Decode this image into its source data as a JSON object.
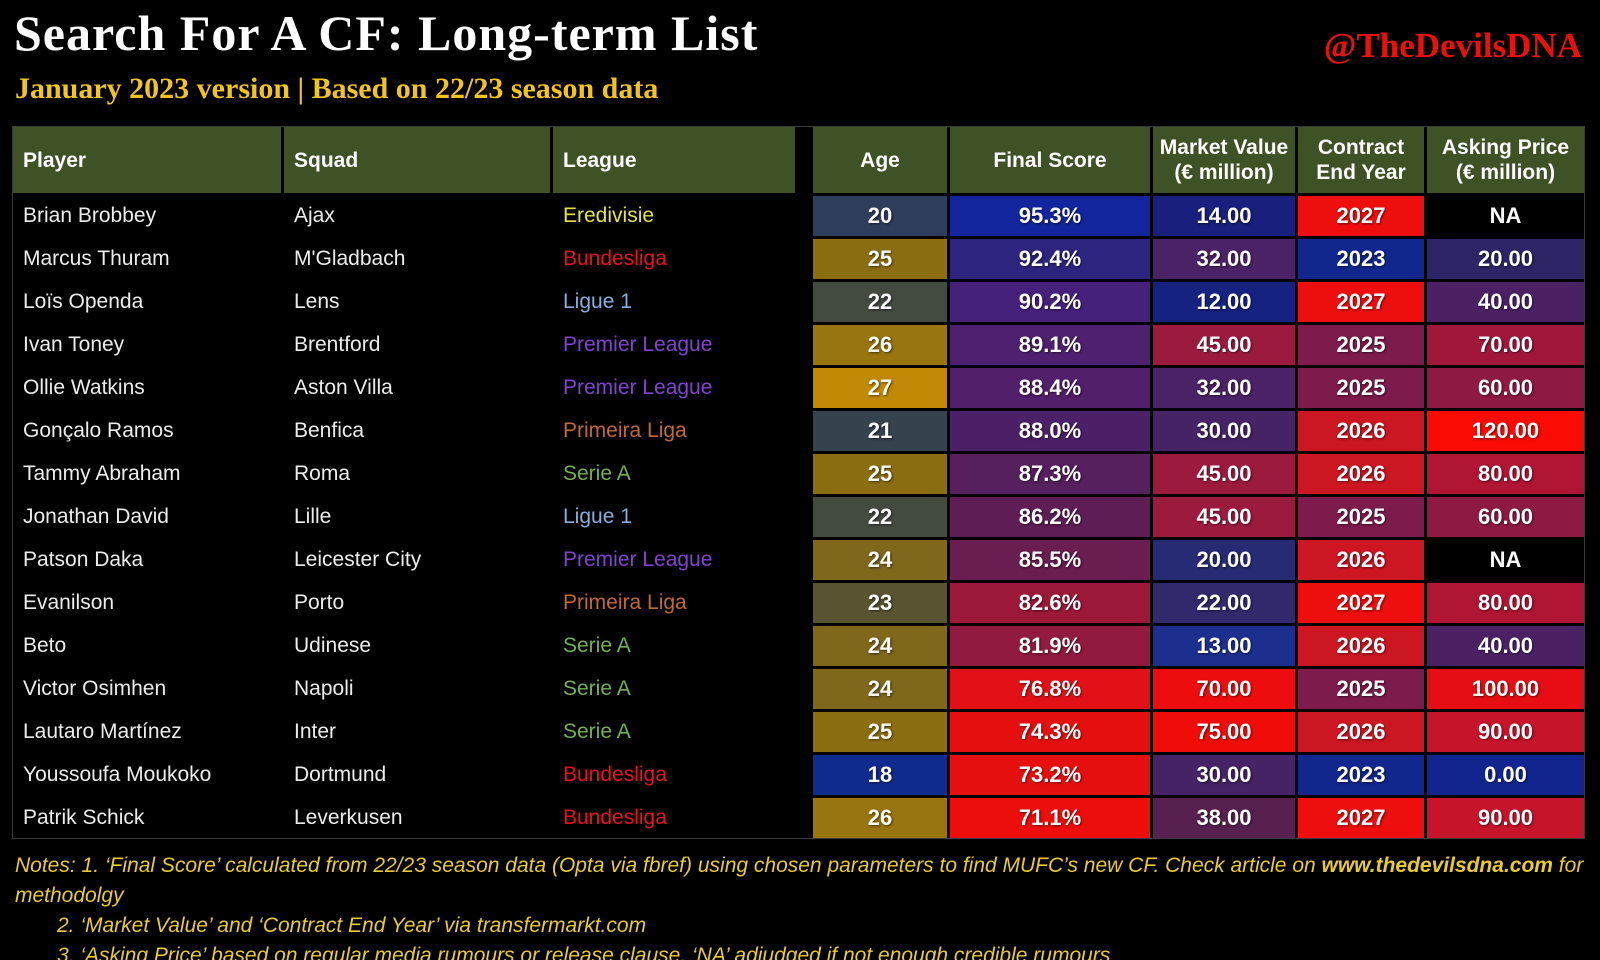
{
  "page": {
    "title": "Search For A CF: Long-term List",
    "subtitle": "January 2023 version | Based on 22/23 season data",
    "handle": "@TheDevilsDNA",
    "colors": {
      "background": "#000000",
      "title_text": "#ffffff",
      "subtitle_text": "#f2c51d",
      "handle_text": "#ea100c",
      "header_bg": "#3e5226",
      "notes_text": "#e9cb2e"
    }
  },
  "chart_data": {
    "type": "table",
    "title": "Search For A CF: Long-term List",
    "columns": [
      {
        "label": "Player",
        "sub": "",
        "align": "left"
      },
      {
        "label": "Squad",
        "sub": "",
        "align": "left"
      },
      {
        "label": "League",
        "sub": "",
        "align": "left"
      },
      {
        "label": "Age",
        "sub": "",
        "align": "center"
      },
      {
        "label": "Final Score",
        "sub": "",
        "align": "center"
      },
      {
        "label": "Market Value",
        "sub": "(€ million)",
        "align": "center"
      },
      {
        "label": "Contract",
        "sub": "End Year",
        "align": "center"
      },
      {
        "label": "Asking Price",
        "sub": "(€ million)",
        "align": "center"
      }
    ],
    "league_colors": {
      "Eredivisie": "#e6e33c",
      "Bundesliga": "#e8111d",
      "Ligue 1": "#85aede",
      "Premier League": "#8043cf",
      "Primeira Liga": "#c06a32",
      "Serie A": "#74b054"
    },
    "rows": [
      {
        "player": "Brian Brobbey",
        "squad": "Ajax",
        "league": "Eredivisie",
        "age": "20",
        "final_score": "95.3%",
        "market_value": "14.00",
        "contract_end_year": "2027",
        "asking_price": "NA",
        "cell_colors": {
          "age": "#2f3d5c",
          "final_score": "#12259c",
          "market_value": "#181f7c",
          "contract_end_year": "#ee0e0d",
          "asking_price": "#000000"
        }
      },
      {
        "player": "Marcus Thuram",
        "squad": "M'Gladbach",
        "league": "Bundesliga",
        "age": "25",
        "final_score": "92.4%",
        "market_value": "32.00",
        "contract_end_year": "2023",
        "asking_price": "20.00",
        "cell_colors": {
          "age": "#8b6e12",
          "final_score": "#2d2480",
          "market_value": "#4c2266",
          "contract_end_year": "#12278e",
          "asking_price": "#2e2566"
        }
      },
      {
        "player": "Loïs Openda",
        "squad": "Lens",
        "league": "Ligue 1",
        "age": "22",
        "final_score": "90.2%",
        "market_value": "12.00",
        "contract_end_year": "2027",
        "asking_price": "40.00",
        "cell_colors": {
          "age": "#434a40",
          "final_score": "#45217b",
          "market_value": "#16227f",
          "contract_end_year": "#ee0e0d",
          "asking_price": "#4b2164"
        }
      },
      {
        "player": "Ivan Toney",
        "squad": "Brentford",
        "league": "Premier League",
        "age": "26",
        "final_score": "89.1%",
        "market_value": "45.00",
        "contract_end_year": "2025",
        "asking_price": "70.00",
        "cell_colors": {
          "age": "#98750e",
          "final_score": "#4e2070",
          "market_value": "#9c1a3e",
          "contract_end_year": "#7c1b4c",
          "asking_price": "#a1173a"
        }
      },
      {
        "player": "Ollie Watkins",
        "squad": "Aston Villa",
        "league": "Premier League",
        "age": "27",
        "final_score": "88.4%",
        "market_value": "32.00",
        "contract_end_year": "2025",
        "asking_price": "60.00",
        "cell_colors": {
          "age": "#c18a06",
          "final_score": "#521f6b",
          "market_value": "#4c2266",
          "contract_end_year": "#7c1b4c",
          "asking_price": "#8e1a44"
        }
      },
      {
        "player": "Gonçalo Ramos",
        "squad": "Benfica",
        "league": "Primeira Liga",
        "age": "21",
        "final_score": "88.0%",
        "market_value": "30.00",
        "contract_end_year": "2026",
        "asking_price": "120.00",
        "cell_colors": {
          "age": "#37424f",
          "final_score": "#4c2067",
          "market_value": "#452365",
          "contract_end_year": "#cc1622",
          "asking_price": "#fa0c04"
        }
      },
      {
        "player": "Tammy Abraham",
        "squad": "Roma",
        "league": "Serie A",
        "age": "25",
        "final_score": "87.3%",
        "market_value": "45.00",
        "contract_end_year": "2026",
        "asking_price": "80.00",
        "cell_colors": {
          "age": "#8b6e12",
          "final_score": "#561f5e",
          "market_value": "#9c1a3e",
          "contract_end_year": "#cc1622",
          "asking_price": "#b01533"
        }
      },
      {
        "player": "Jonathan David",
        "squad": "Lille",
        "league": "Ligue 1",
        "age": "22",
        "final_score": "86.2%",
        "market_value": "45.00",
        "contract_end_year": "2025",
        "asking_price": "60.00",
        "cell_colors": {
          "age": "#434a40",
          "final_score": "#5e1e55",
          "market_value": "#9c1a3e",
          "contract_end_year": "#7c1b4c",
          "asking_price": "#8e1a44"
        }
      },
      {
        "player": "Patson Daka",
        "squad": "Leicester City",
        "league": "Premier League",
        "age": "24",
        "final_score": "85.5%",
        "market_value": "20.00",
        "contract_end_year": "2026",
        "asking_price": "NA",
        "cell_colors": {
          "age": "#7f671c",
          "final_score": "#691d50",
          "market_value": "#272b73",
          "contract_end_year": "#cc1622",
          "asking_price": "#000000"
        }
      },
      {
        "player": "Evanilson",
        "squad": "Porto",
        "league": "Primeira Liga",
        "age": "23",
        "final_score": "82.6%",
        "market_value": "22.00",
        "contract_end_year": "2027",
        "asking_price": "80.00",
        "cell_colors": {
          "age": "#585432",
          "final_score": "#9c1839",
          "market_value": "#32296d",
          "contract_end_year": "#ee0e0d",
          "asking_price": "#b01533"
        }
      },
      {
        "player": "Beto",
        "squad": "Udinese",
        "league": "Serie A",
        "age": "24",
        "final_score": "81.9%",
        "market_value": "13.00",
        "contract_end_year": "2026",
        "asking_price": "40.00",
        "cell_colors": {
          "age": "#7f671c",
          "final_score": "#921a40",
          "market_value": "#1c2f8f",
          "contract_end_year": "#cc1622",
          "asking_price": "#4b2164"
        }
      },
      {
        "player": "Victor Osimhen",
        "squad": "Napoli",
        "league": "Serie A",
        "age": "24",
        "final_score": "76.8%",
        "market_value": "70.00",
        "contract_end_year": "2025",
        "asking_price": "100.00",
        "cell_colors": {
          "age": "#7f671c",
          "final_score": "#e21117",
          "market_value": "#ed0d0e",
          "contract_end_year": "#7c1b4c",
          "asking_price": "#e60e14"
        }
      },
      {
        "player": "Lautaro Martínez",
        "squad": "Inter",
        "league": "Serie A",
        "age": "25",
        "final_score": "74.3%",
        "market_value": "75.00",
        "contract_end_year": "2026",
        "asking_price": "90.00",
        "cell_colors": {
          "age": "#8b6e12",
          "final_score": "#e60f10",
          "market_value": "#f00c09",
          "contract_end_year": "#cc1622",
          "asking_price": "#c6142a"
        }
      },
      {
        "player": "Youssoufa Moukoko",
        "squad": "Dortmund",
        "league": "Bundesliga",
        "age": "18",
        "final_score": "73.2%",
        "market_value": "30.00",
        "contract_end_year": "2023",
        "asking_price": "0.00",
        "cell_colors": {
          "age": "#102b8e",
          "final_score": "#e60f10",
          "market_value": "#452365",
          "contract_end_year": "#12278e",
          "asking_price": "#12258e"
        }
      },
      {
        "player": "Patrik Schick",
        "squad": "Leverkusen",
        "league": "Bundesliga",
        "age": "26",
        "final_score": "71.1%",
        "market_value": "38.00",
        "contract_end_year": "2027",
        "asking_price": "90.00",
        "cell_colors": {
          "age": "#98750e",
          "final_score": "#ed0d0b",
          "market_value": "#57204f",
          "contract_end_year": "#ee0e0d",
          "asking_price": "#c6142a"
        }
      }
    ]
  },
  "notes": {
    "line1_pre": "Notes: 1. ‘Final Score’ calculated from 22/23 season data (Opta via fbref) using chosen parameters to find MUFC’s new CF. Check article on ",
    "line1_bold": "www.thedevilsdna.com",
    "line1_post": " for methodolgy",
    "line2": "2. ‘Market Value’ and ‘Contract End Year’ via transfermarkt.com",
    "line3": "3. ‘Asking Price’ based on regular media rumours or release clause. ‘NA’ adjudged if not enough credible rumours"
  }
}
